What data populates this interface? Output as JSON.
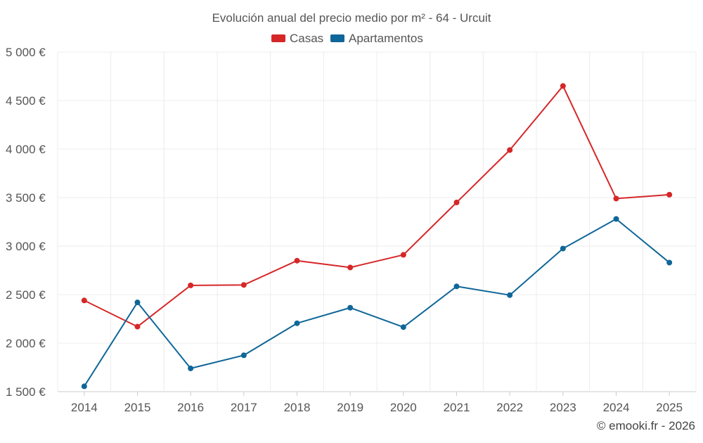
{
  "chart_data": {
    "type": "line",
    "title": "Evolución anual del precio medio por m² - 64 - Urcuit",
    "categories": [
      "2014",
      "2015",
      "2016",
      "2017",
      "2018",
      "2019",
      "2020",
      "2021",
      "2022",
      "2023",
      "2024",
      "2025"
    ],
    "series": [
      {
        "name": "Casas",
        "color": "#d62728",
        "values": [
          2440,
          2170,
          2595,
          2600,
          2850,
          2780,
          2910,
          3450,
          3990,
          4650,
          3490,
          3530
        ]
      },
      {
        "name": "Apartamentos",
        "color": "#0f6698",
        "values": [
          1555,
          2420,
          1740,
          1875,
          2205,
          2365,
          2165,
          2585,
          2495,
          2975,
          3280,
          2830
        ]
      }
    ],
    "ylim": [
      1500,
      5000
    ],
    "yticks": [
      1500,
      2000,
      2500,
      3000,
      3500,
      4000,
      4500,
      5000
    ],
    "ytick_labels": [
      "1 500 €",
      "2 000 €",
      "2 500 €",
      "3 000 €",
      "3 500 €",
      "4 000 €",
      "4 500 €",
      "5 000 €"
    ],
    "grid": true,
    "legend_position": "top-center"
  },
  "credit": "© emooki.fr - 2026"
}
